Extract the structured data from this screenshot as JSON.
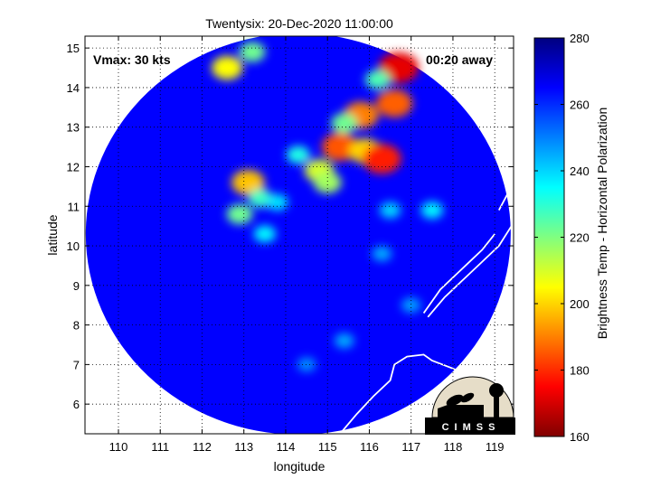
{
  "chart_data": {
    "type": "heatmap",
    "title": "Twentysix: 20-Dec-2020 11:00:00",
    "xlabel": "longitude",
    "ylabel": "latitude",
    "xlim": [
      109.2,
      119.45
    ],
    "ylim": [
      5.25,
      15.3
    ],
    "x_ticks": [
      "110",
      "111",
      "112",
      "113",
      "114",
      "115",
      "116",
      "117",
      "118",
      "119"
    ],
    "y_ticks": [
      "6",
      "7",
      "8",
      "9",
      "10",
      "11",
      "12",
      "13",
      "14",
      "15"
    ],
    "grid": true,
    "annotations": {
      "vmax": "Vmax: 30 kts",
      "time_away": "00:20 away"
    },
    "colorbar": {
      "label": "Brightness Temp - Horizontal Polarization",
      "range": [
        160,
        280
      ],
      "ticks": [
        "160",
        "180",
        "200",
        "220",
        "240",
        "260",
        "280"
      ],
      "colormap": "jet-reversed",
      "colors": [
        "#800000",
        "#ff0000",
        "#ff8000",
        "#ffff00",
        "#80ff80",
        "#00ffff",
        "#0080ff",
        "#0000ff",
        "#000080"
      ]
    },
    "swath_center": [
      114.3,
      10.3
    ],
    "background_value": 265,
    "features": [
      {
        "lon": 113.1,
        "lat": 11.6,
        "value": 198
      },
      {
        "lon": 113.4,
        "lat": 11.2,
        "value": 228
      },
      {
        "lon": 112.9,
        "lat": 10.8,
        "value": 222
      },
      {
        "lon": 113.5,
        "lat": 10.3,
        "value": 236
      },
      {
        "lon": 115.3,
        "lat": 12.5,
        "value": 185
      },
      {
        "lon": 115.9,
        "lat": 12.4,
        "value": 200
      },
      {
        "lon": 116.3,
        "lat": 12.2,
        "value": 178
      },
      {
        "lon": 114.8,
        "lat": 11.9,
        "value": 210
      },
      {
        "lon": 115.0,
        "lat": 11.6,
        "value": 216
      },
      {
        "lon": 115.8,
        "lat": 13.3,
        "value": 190
      },
      {
        "lon": 116.6,
        "lat": 13.6,
        "value": 186
      },
      {
        "lon": 115.4,
        "lat": 13.1,
        "value": 222
      },
      {
        "lon": 116.7,
        "lat": 14.5,
        "value": 172
      },
      {
        "lon": 116.2,
        "lat": 14.2,
        "value": 226
      },
      {
        "lon": 112.6,
        "lat": 14.5,
        "value": 205
      },
      {
        "lon": 113.2,
        "lat": 14.9,
        "value": 222
      },
      {
        "lon": 113.8,
        "lat": 11.1,
        "value": 238
      },
      {
        "lon": 117.5,
        "lat": 10.9,
        "value": 236
      },
      {
        "lon": 116.5,
        "lat": 10.9,
        "value": 240
      },
      {
        "lon": 114.3,
        "lat": 12.3,
        "value": 232
      },
      {
        "lon": 116.3,
        "lat": 9.8,
        "value": 245
      },
      {
        "lon": 115.4,
        "lat": 7.6,
        "value": 245
      },
      {
        "lon": 114.5,
        "lat": 7.0,
        "value": 248
      },
      {
        "lon": 117.0,
        "lat": 8.5,
        "value": 246
      }
    ],
    "coastlines": [
      [
        [
          115.3,
          5.25
        ],
        [
          115.7,
          5.75
        ],
        [
          116.1,
          6.2
        ],
        [
          116.5,
          6.6
        ],
        [
          116.6,
          7.0
        ],
        [
          116.9,
          7.2
        ],
        [
          117.3,
          7.25
        ],
        [
          117.5,
          7.1
        ],
        [
          118.0,
          6.9
        ],
        [
          118.6,
          6.6
        ],
        [
          119.4,
          5.8
        ]
      ],
      [
        [
          117.4,
          8.2
        ],
        [
          117.8,
          8.7
        ],
        [
          118.3,
          9.2
        ],
        [
          118.7,
          9.6
        ],
        [
          119.1,
          10.0
        ],
        [
          119.4,
          10.5
        ]
      ],
      [
        [
          117.3,
          8.3
        ],
        [
          117.7,
          8.9
        ],
        [
          118.2,
          9.4
        ],
        [
          118.7,
          9.9
        ],
        [
          119.0,
          10.3
        ]
      ],
      [
        [
          119.1,
          10.9
        ],
        [
          119.3,
          11.3
        ],
        [
          119.4,
          11.6
        ]
      ],
      [
        [
          109.3,
          14.4
        ],
        [
          109.5,
          13.8
        ],
        [
          109.2,
          13.5
        ],
        [
          109.5,
          13.0
        ],
        [
          109.2,
          12.5
        ],
        [
          109.3,
          12.0
        ]
      ]
    ]
  },
  "logo": {
    "text": "CIMSS"
  }
}
